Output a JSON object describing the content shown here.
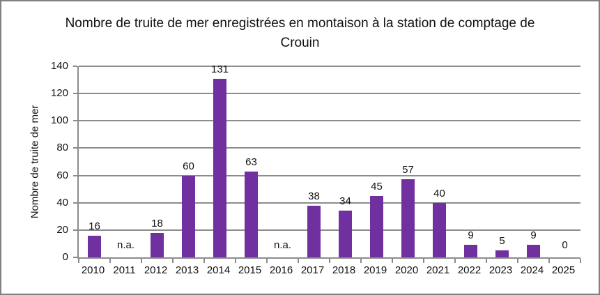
{
  "frame": {
    "background": "#FFFFFF",
    "border_color": "#808080"
  },
  "chart_data": {
    "type": "bar",
    "title": "Nombre de truite de mer enregistrées en montaison à la station de comptage de Crouin",
    "xlabel": "",
    "ylabel": "Nombre de truite de mer",
    "categories": [
      "2010",
      "2011",
      "2012",
      "2013",
      "2014",
      "2015",
      "2016",
      "2017",
      "2018",
      "2019",
      "2020",
      "2021",
      "2022",
      "2023",
      "2024",
      "2025"
    ],
    "values": [
      16,
      null,
      18,
      60,
      131,
      63,
      null,
      38,
      34,
      45,
      57,
      40,
      9,
      5,
      9,
      0
    ],
    "data_labels": [
      "16",
      "n.a.",
      "18",
      "60",
      "131",
      "63",
      "n.a.",
      "38",
      "34",
      "45",
      "57",
      "40",
      "9",
      "5",
      "9",
      "0"
    ],
    "na_label": "n.a.",
    "ylim": [
      0,
      140
    ],
    "yticks": [
      0,
      20,
      40,
      60,
      80,
      100,
      120,
      140
    ],
    "grid": true,
    "legend_position": "none",
    "bar_color": "#7030A0",
    "grid_color": "#8C8C8C",
    "axis_color": "#8C8C8C",
    "text_color": "#111111"
  }
}
